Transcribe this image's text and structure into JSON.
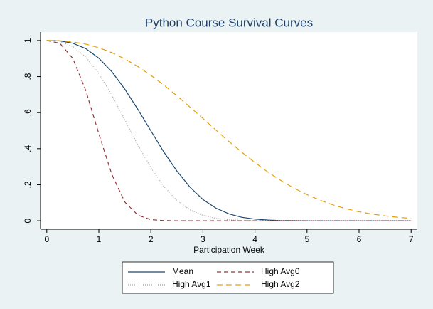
{
  "chart_data": {
    "type": "line",
    "title": "Python Course Survival Curves",
    "x_label": "Participation Week",
    "x": [
      0,
      0.25,
      0.5,
      0.75,
      1,
      1.25,
      1.5,
      1.75,
      2,
      2.25,
      2.5,
      2.75,
      3,
      3.25,
      3.5,
      3.75,
      4,
      4.25,
      4.5,
      4.75,
      5,
      5.25,
      5.5,
      5.75,
      6,
      6.25,
      6.5,
      6.75,
      7
    ],
    "series": [
      {
        "name": "Mean",
        "color": "#1a476f",
        "dash": "none",
        "values": [
          1,
          0.998,
          0.985,
          0.955,
          0.902,
          0.827,
          0.73,
          0.618,
          0.499,
          0.381,
          0.276,
          0.187,
          0.118,
          0.07,
          0.038,
          0.019,
          0.009,
          0.004,
          0.001,
          0.001,
          0,
          0,
          0,
          0,
          0,
          0,
          0,
          0,
          0
        ]
      },
      {
        "name": "High Avg0",
        "color": "#90353b",
        "dash": "6,4",
        "values": [
          1,
          0.985,
          0.901,
          0.722,
          0.483,
          0.257,
          0.104,
          0.031,
          0.006,
          0.001,
          0,
          0,
          0,
          0,
          0,
          0,
          0,
          0,
          0,
          0,
          0,
          0,
          0,
          0,
          0,
          0,
          0,
          0,
          0
        ]
      },
      {
        "name": "High Avg1",
        "color": "#a0a0a0",
        "dash": "1,2",
        "values": [
          1,
          0.995,
          0.967,
          0.909,
          0.817,
          0.697,
          0.56,
          0.421,
          0.294,
          0.19,
          0.112,
          0.061,
          0.03,
          0.013,
          0.005,
          0.002,
          0.001,
          0,
          0,
          0,
          0,
          0,
          0,
          0,
          0,
          0,
          0,
          0,
          0
        ]
      },
      {
        "name": "High Avg2",
        "color": "#e8a000",
        "dash": "8,5",
        "values": [
          1,
          0.999,
          0.992,
          0.98,
          0.96,
          0.933,
          0.898,
          0.856,
          0.807,
          0.753,
          0.693,
          0.631,
          0.568,
          0.503,
          0.44,
          0.38,
          0.323,
          0.27,
          0.223,
          0.181,
          0.145,
          0.114,
          0.088,
          0.067,
          0.05,
          0.037,
          0.027,
          0.019,
          0.013
        ]
      }
    ],
    "xlim": [
      -0.12,
      7.12
    ],
    "xticks": [
      0,
      1,
      2,
      3,
      4,
      5,
      6,
      7
    ],
    "ylim": [
      -0.047,
      1.047
    ],
    "yticks": [
      0,
      {
        "value": 0.2,
        "label": ".2"
      },
      {
        "value": 0.4,
        "label": ".4"
      },
      {
        "value": 0.6,
        "label": ".6"
      },
      {
        "value": 0.8,
        "label": ".8"
      },
      1
    ],
    "grid": false
  }
}
